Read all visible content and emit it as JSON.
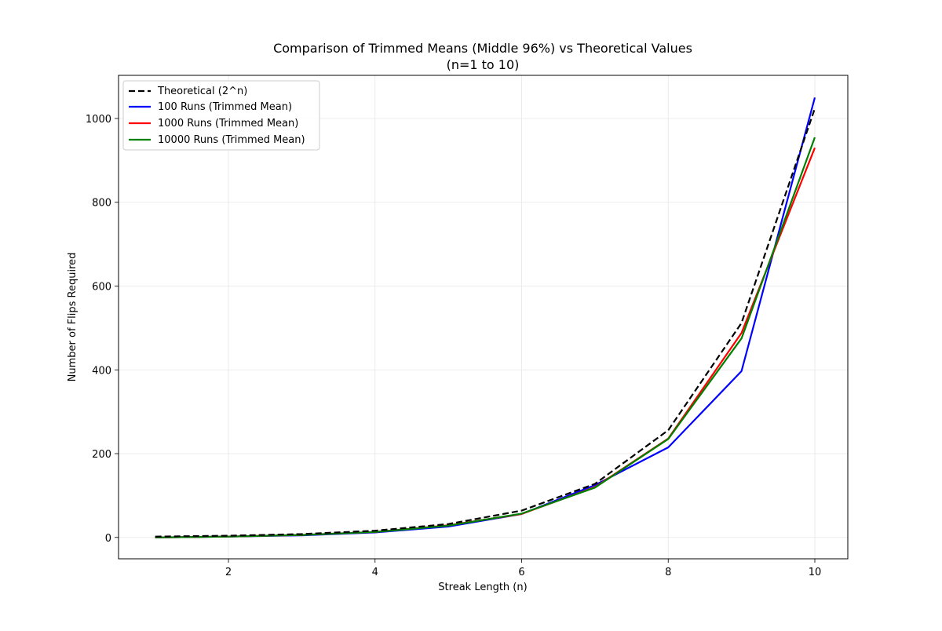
{
  "chart_data": {
    "type": "line",
    "title": "Comparison of Trimmed Means (Middle 96%) vs Theoretical Values",
    "subtitle": "(n=1 to 10)",
    "xlabel": "Streak Length (n)",
    "ylabel": "Number of Flips Required",
    "xlim": [
      0.5,
      10.45
    ],
    "ylim": [
      -51,
      1103
    ],
    "xticks": [
      2,
      4,
      6,
      8,
      10
    ],
    "yticks": [
      0,
      200,
      400,
      600,
      800,
      1000
    ],
    "grid": true,
    "legend_position": "upper left",
    "x": [
      1,
      2,
      3,
      4,
      5,
      6,
      7,
      8,
      9,
      10
    ],
    "series": [
      {
        "name": "Theoretical (2^n)",
        "color": "#000000",
        "dash": true,
        "values": [
          2,
          4,
          8,
          16,
          32,
          64,
          128,
          256,
          512,
          1024
        ]
      },
      {
        "name": "100 Runs (Trimmed Mean)",
        "color": "#0000ff",
        "dash": false,
        "values": [
          0,
          2,
          5,
          12,
          26,
          56,
          125,
          215,
          397,
          1050
        ]
      },
      {
        "name": "1000 Runs (Trimmed Mean)",
        "color": "#ff0000",
        "dash": false,
        "values": [
          0,
          2,
          6,
          13,
          29,
          56,
          120,
          236,
          488,
          930
        ]
      },
      {
        "name": "10000 Runs (Trimmed Mean)",
        "color": "#008000",
        "dash": false,
        "values": [
          0,
          2,
          6,
          13,
          28,
          57,
          119,
          235,
          475,
          955
        ]
      }
    ]
  }
}
